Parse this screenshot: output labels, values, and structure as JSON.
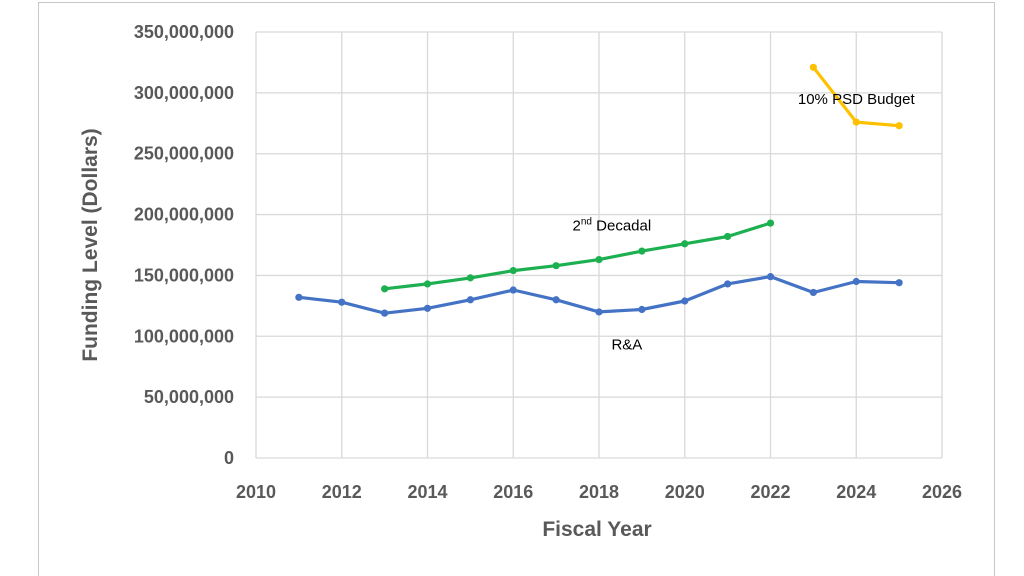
{
  "chart_data": {
    "type": "line",
    "xlabel": "Fiscal Year",
    "ylabel": "Funding Level (Dollars)",
    "xlim": [
      2010,
      2026
    ],
    "ylim": [
      0,
      350000000
    ],
    "x_ticks": [
      2010,
      2012,
      2014,
      2016,
      2018,
      2020,
      2022,
      2024,
      2026
    ],
    "x_tick_labels": [
      "2010",
      "2012",
      "2014",
      "2016",
      "2018",
      "2020",
      "2022",
      "2024",
      "2026"
    ],
    "y_ticks": [
      0,
      50000000,
      100000000,
      150000000,
      200000000,
      250000000,
      300000000,
      350000000
    ],
    "y_tick_labels": [
      "0",
      "50,000,000",
      "100,000,000",
      "150,000,000",
      "200,000,000",
      "250,000,000",
      "300,000,000",
      "350,000,000"
    ],
    "grid": true,
    "legend": "none",
    "series": [
      {
        "color": "#4472C4",
        "x": [
          2011,
          2012,
          2013,
          2014,
          2015,
          2016,
          2017,
          2018,
          2019,
          2020,
          2021,
          2022,
          2023,
          2024,
          2025
        ],
        "values": [
          132000000,
          128000000,
          119000000,
          123000000,
          130000000,
          138000000,
          130000000,
          120000000,
          122000000,
          129000000,
          143000000,
          149000000,
          136000000,
          145000000,
          144000000
        ]
      },
      {
        "color": "#1DB050",
        "x": [
          2013,
          2014,
          2015,
          2016,
          2017,
          2018,
          2019,
          2020,
          2021,
          2022
        ],
        "values": [
          139000000,
          143000000,
          148000000,
          154000000,
          158000000,
          163000000,
          170000000,
          176000000,
          182000000,
          193000000
        ]
      },
      {
        "color": "#FFC000",
        "x": [
          2023,
          2024,
          2025
        ],
        "values": [
          321000000,
          276000000,
          273000000
        ]
      }
    ],
    "annotations": [
      {
        "text": "R&A",
        "x": 2018.65,
        "y": 89000000
      },
      {
        "text_base": "2",
        "text_sup": "nd",
        "text_rest": " Decadal",
        "x": 2018.3,
        "y": 187000000
      },
      {
        "text": "10% PSD Budget",
        "x": 2024.0,
        "y": 291000000
      }
    ]
  }
}
